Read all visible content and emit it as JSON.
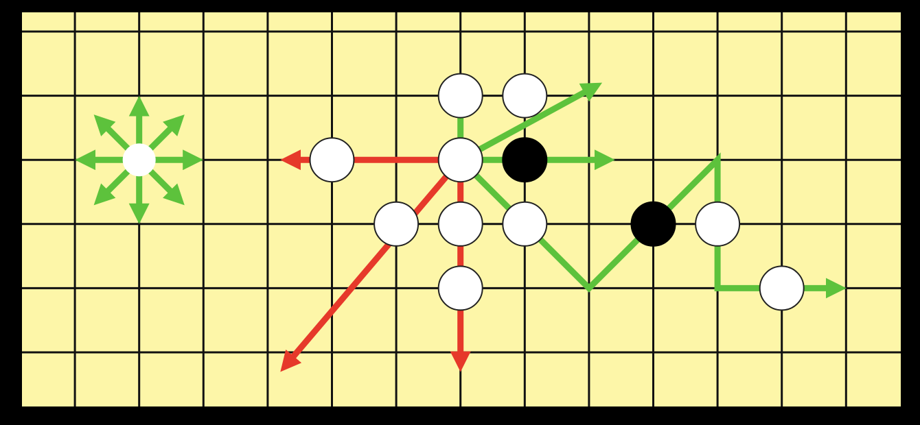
{
  "colors": {
    "frame": "#000000",
    "board": "#fdf6a8",
    "grid_line": "#111111",
    "white_stone": "#ffffff",
    "white_stone_edge": "#222222",
    "black_stone": "#000000",
    "allowed_move": "#5dc23c",
    "blocked_move": "#e6392a"
  },
  "diagram": {
    "columns": 14,
    "rows": 6,
    "single_piece": {
      "col": 2,
      "row": 2,
      "color": "white",
      "directions": 8,
      "move_color": "allowed_move"
    },
    "stones": [
      {
        "col": 5,
        "row": 2,
        "color": "white"
      },
      {
        "col": 7,
        "row": 2,
        "color": "white"
      },
      {
        "col": 8,
        "row": 2,
        "color": "black"
      },
      {
        "col": 7,
        "row": 1,
        "color": "white"
      },
      {
        "col": 8,
        "row": 1,
        "color": "white"
      },
      {
        "col": 6,
        "row": 3,
        "color": "white"
      },
      {
        "col": 7,
        "row": 3,
        "color": "white"
      },
      {
        "col": 8,
        "row": 3,
        "color": "white"
      },
      {
        "col": 7,
        "row": 4,
        "color": "white"
      },
      {
        "col": 10,
        "row": 3,
        "color": "black"
      },
      {
        "col": 11,
        "row": 3,
        "color": "white"
      },
      {
        "col": 12,
        "row": 4,
        "color": "white"
      }
    ],
    "moves": [
      {
        "name": "up",
        "kind": "allowed_move",
        "from": [
          7,
          2
        ],
        "path": [
          [
            7,
            0.8
          ]
        ]
      },
      {
        "name": "up-right",
        "kind": "allowed_move",
        "from": [
          7,
          2
        ],
        "path": [
          [
            9.2,
            0.8
          ]
        ]
      },
      {
        "name": "right",
        "kind": "allowed_move",
        "from": [
          7,
          2
        ],
        "path": [
          [
            9.4,
            2
          ]
        ]
      },
      {
        "name": "left",
        "kind": "blocked_move",
        "from": [
          7,
          2
        ],
        "path": [
          [
            4.2,
            2
          ]
        ]
      },
      {
        "name": "down",
        "kind": "blocked_move",
        "from": [
          7,
          2
        ],
        "path": [
          [
            7,
            5.3
          ]
        ]
      },
      {
        "name": "down-left",
        "kind": "blocked_move",
        "from": [
          7,
          2
        ],
        "path": [
          [
            4.2,
            5.3
          ]
        ]
      },
      {
        "name": "zigzag",
        "kind": "allowed_move",
        "from": [
          7,
          2
        ],
        "path": [
          [
            9,
            4
          ],
          [
            11,
            2
          ],
          [
            11,
            4
          ],
          [
            13,
            4
          ]
        ]
      }
    ]
  }
}
